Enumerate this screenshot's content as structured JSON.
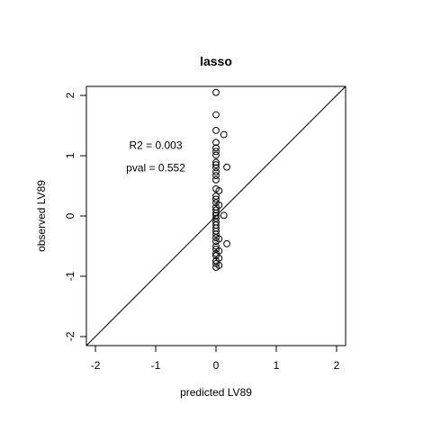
{
  "chart_data": {
    "type": "scatter",
    "title": "lasso",
    "xlabel": "predicted LV89",
    "ylabel": "observed LV89",
    "xlim": [
      -2.15,
      2.15
    ],
    "ylim": [
      -2.15,
      2.15
    ],
    "xticks": [
      -2,
      -1,
      0,
      1,
      2
    ],
    "yticks": [
      -2,
      -1,
      0,
      1,
      2
    ],
    "x_tick_labels": [
      "-2",
      "-1",
      "0",
      "1",
      "2"
    ],
    "y_tick_labels": [
      "-2",
      "-1",
      "0",
      "1",
      "2"
    ],
    "grid": false,
    "reference_line": "y = x",
    "marker": "open-circle",
    "annotations": [
      {
        "text": "R2 = 0.003",
        "x": -1.0,
        "y": 1.17
      },
      {
        "text": "pval = 0.552",
        "x": -1.0,
        "y": 0.8
      }
    ],
    "series": [
      {
        "points": [
          [
            0.0,
            2.05
          ],
          [
            0.0,
            1.68
          ],
          [
            0.0,
            1.42
          ],
          [
            0.13,
            1.35
          ],
          [
            0.0,
            1.22
          ],
          [
            0.0,
            1.13
          ],
          [
            0.0,
            1.07
          ],
          [
            0.0,
            1.01
          ],
          [
            0.0,
            0.89
          ],
          [
            0.0,
            0.85
          ],
          [
            0.0,
            0.8
          ],
          [
            0.18,
            0.81
          ],
          [
            0.0,
            0.73
          ],
          [
            0.0,
            0.67
          ],
          [
            0.0,
            0.6
          ],
          [
            0.0,
            0.45
          ],
          [
            0.05,
            0.42
          ],
          [
            0.0,
            0.33
          ],
          [
            0.0,
            0.28
          ],
          [
            0.0,
            0.22
          ],
          [
            0.05,
            0.18
          ],
          [
            0.0,
            0.15
          ],
          [
            0.0,
            0.1
          ],
          [
            0.0,
            0.05
          ],
          [
            0.0,
            0.01
          ],
          [
            0.13,
            0.01
          ],
          [
            0.0,
            -0.04
          ],
          [
            0.0,
            -0.1
          ],
          [
            0.0,
            -0.15
          ],
          [
            0.0,
            -0.2
          ],
          [
            0.0,
            -0.25
          ],
          [
            0.0,
            -0.3
          ],
          [
            0.0,
            -0.36
          ],
          [
            0.05,
            -0.38
          ],
          [
            0.0,
            -0.42
          ],
          [
            0.18,
            -0.46
          ],
          [
            0.0,
            -0.5
          ],
          [
            0.0,
            -0.55
          ],
          [
            0.05,
            -0.58
          ],
          [
            0.0,
            -0.62
          ],
          [
            0.0,
            -0.66
          ],
          [
            0.05,
            -0.7
          ],
          [
            0.0,
            -0.74
          ],
          [
            0.0,
            -0.79
          ],
          [
            0.05,
            -0.82
          ],
          [
            0.0,
            -0.85
          ]
        ]
      }
    ]
  }
}
